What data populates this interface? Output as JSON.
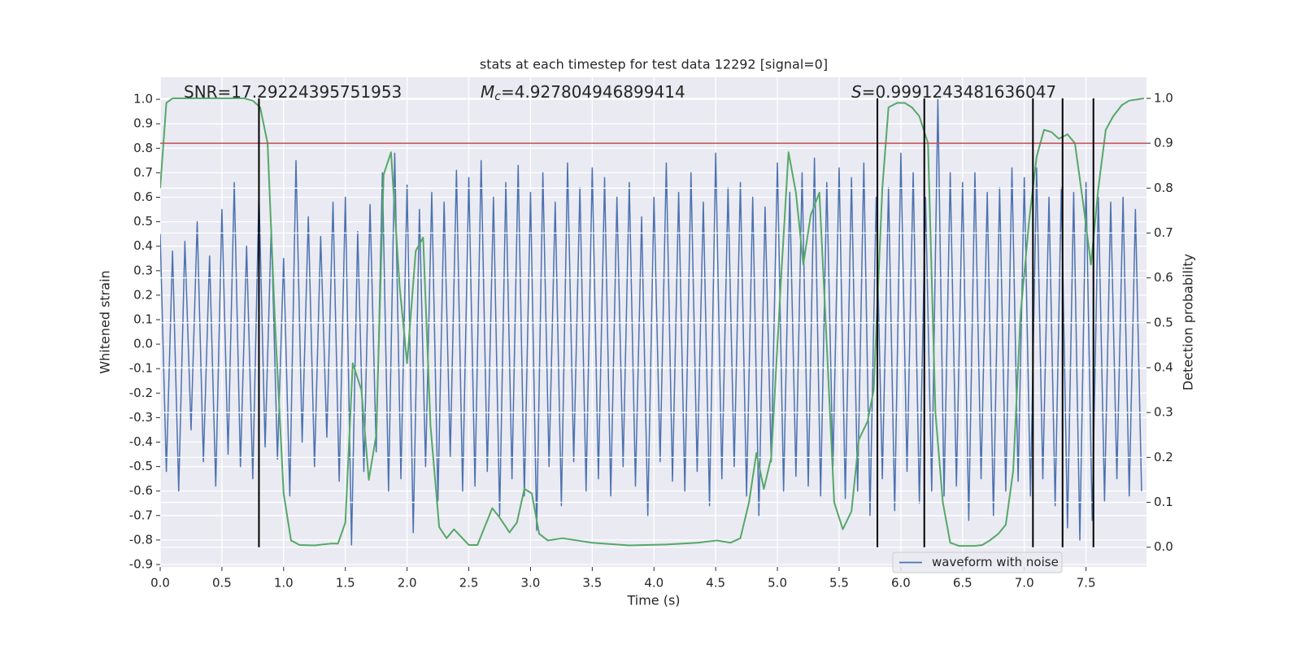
{
  "chart_data": {
    "type": "line",
    "title": "stats at each timestep for test data 12292 [signal=0]",
    "xlabel": "Time (s)",
    "ylabel": "Whitened strain",
    "y2label": "Detection probability",
    "xlim": [
      0,
      7.99
    ],
    "ylim": [
      -0.91,
      1.09
    ],
    "y2lim": [
      -0.044,
      1.047
    ],
    "grid": true,
    "legend": "lower right",
    "xticks": [
      {
        "value": 0,
        "label": "0.0"
      },
      0.5,
      {
        "value": 1,
        "label": "1.0"
      },
      1.5,
      {
        "value": 2,
        "label": "2.0"
      },
      2.5,
      {
        "value": 3,
        "label": "3.0"
      },
      3.5,
      {
        "value": 4,
        "label": "4.0"
      },
      4.5,
      {
        "value": 5,
        "label": "5.0"
      },
      5.5,
      {
        "value": 6,
        "label": "6.0"
      },
      6.5,
      {
        "value": 7,
        "label": "7.0"
      },
      7.5
    ],
    "yticks": [
      -0.9,
      -0.8,
      -0.7,
      -0.6,
      -0.5,
      -0.4,
      -0.3,
      -0.2,
      -0.1,
      {
        "value": 0,
        "label": "0.0"
      },
      0.1,
      0.2,
      0.3,
      0.4,
      0.5,
      0.6,
      0.7,
      0.8,
      0.9,
      {
        "value": 1,
        "label": "1.0"
      }
    ],
    "y2ticks": [
      {
        "value": 0,
        "label": "0.0"
      },
      0.1,
      0.2,
      0.3,
      0.4,
      0.5,
      0.6,
      0.7,
      0.8,
      0.9,
      {
        "value": 1,
        "label": "1.0"
      }
    ],
    "annotations": [
      {
        "text": "SNR=17.29224395751953"
      },
      {
        "symbol": "M",
        "subscript": "c",
        "text": "=4.927804946899414"
      },
      {
        "symbol": "S",
        "text": "=0.9991243481636047"
      }
    ],
    "hlines": [
      {
        "value": 0.9,
        "axis": "y2",
        "color": "#c44e52"
      }
    ],
    "vlines": {
      "x": [
        0.8,
        5.81,
        6.19,
        7.07,
        7.31,
        7.56
      ],
      "y2range": [
        0,
        1
      ],
      "color": "#000000"
    },
    "series": [
      {
        "name": "waveform with noise",
        "color": "#4c72b0",
        "x": [
          0.0,
          0.05,
          0.1,
          0.15,
          0.2,
          0.25,
          0.3,
          0.35,
          0.4,
          0.45,
          0.5,
          0.55,
          0.6,
          0.65,
          0.7,
          0.75,
          0.8,
          0.85,
          0.9,
          0.95,
          1.0,
          1.05,
          1.1,
          1.15,
          1.2,
          1.25,
          1.3,
          1.35,
          1.4,
          1.45,
          1.5,
          1.55,
          1.6,
          1.65,
          1.7,
          1.75,
          1.8,
          1.85,
          1.9,
          1.95,
          2.0,
          2.05,
          2.1,
          2.15,
          2.2,
          2.25,
          2.3,
          2.35,
          2.4,
          2.45,
          2.5,
          2.55,
          2.6,
          2.65,
          2.7,
          2.75,
          2.8,
          2.85,
          2.9,
          2.95,
          3.0,
          3.05,
          3.1,
          3.15,
          3.2,
          3.25,
          3.3,
          3.35,
          3.4,
          3.45,
          3.5,
          3.55,
          3.6,
          3.65,
          3.7,
          3.75,
          3.8,
          3.85,
          3.9,
          3.95,
          4.0,
          4.05,
          4.1,
          4.15,
          4.2,
          4.25,
          4.3,
          4.35,
          4.4,
          4.45,
          4.5,
          4.55,
          4.6,
          4.65,
          4.7,
          4.75,
          4.8,
          4.85,
          4.9,
          4.95,
          5.0,
          5.05,
          5.1,
          5.15,
          5.2,
          5.25,
          5.3,
          5.35,
          5.4,
          5.45,
          5.5,
          5.55,
          5.6,
          5.65,
          5.7,
          5.75,
          5.8,
          5.85,
          5.9,
          5.95,
          6.0,
          6.05,
          6.1,
          6.15,
          6.2,
          6.25,
          6.3,
          6.35,
          6.4,
          6.45,
          6.5,
          6.55,
          6.6,
          6.65,
          6.7,
          6.75,
          6.8,
          6.85,
          6.9,
          6.95,
          7.0,
          7.05,
          7.1,
          7.15,
          7.2,
          7.25,
          7.3,
          7.35,
          7.4,
          7.45,
          7.5,
          7.55,
          7.6,
          7.65,
          7.7,
          7.75,
          7.8,
          7.85,
          7.9,
          7.95
        ],
        "values": [
          0.45,
          -0.52,
          0.38,
          -0.6,
          0.42,
          -0.35,
          0.5,
          -0.48,
          0.36,
          -0.58,
          0.55,
          -0.45,
          0.66,
          -0.5,
          0.4,
          -0.55,
          0.62,
          -0.42,
          0.48,
          -0.47,
          0.35,
          -0.62,
          0.75,
          -0.4,
          0.52,
          -0.5,
          0.44,
          -0.38,
          0.58,
          -0.56,
          0.6,
          -0.82,
          0.46,
          -0.52,
          0.57,
          -0.44,
          0.7,
          -0.6,
          0.78,
          -0.55,
          0.65,
          -0.77,
          0.55,
          -0.5,
          0.62,
          -0.64,
          0.58,
          -0.46,
          0.71,
          -0.6,
          0.68,
          -0.58,
          0.75,
          -0.52,
          0.6,
          -0.7,
          0.66,
          -0.55,
          0.73,
          -0.62,
          0.62,
          -0.76,
          0.7,
          -0.5,
          0.58,
          -0.66,
          0.74,
          -0.48,
          0.64,
          -0.6,
          0.72,
          -0.55,
          0.68,
          -0.62,
          0.6,
          -0.5,
          0.66,
          -0.58,
          0.52,
          -0.7,
          0.6,
          -0.48,
          0.74,
          -0.56,
          0.62,
          -0.6,
          0.7,
          -0.52,
          0.58,
          -0.66,
          0.78,
          -0.55,
          0.64,
          -0.5,
          0.66,
          -0.62,
          0.6,
          -0.7,
          0.56,
          -0.48,
          0.74,
          -0.6,
          0.62,
          -0.54,
          0.7,
          -0.58,
          0.76,
          -0.62,
          0.66,
          -0.5,
          0.72,
          -0.63,
          0.68,
          -0.6,
          0.74,
          -0.7,
          0.6,
          -0.55,
          0.64,
          -0.68,
          0.78,
          -0.52,
          0.7,
          -0.65,
          0.6,
          -0.6,
          1.0,
          -0.62,
          0.7,
          -0.58,
          0.66,
          -0.72,
          0.7,
          -0.55,
          0.62,
          -0.7,
          0.64,
          -0.6,
          0.72,
          -0.56,
          0.68,
          -0.62,
          0.72,
          -0.55,
          0.6,
          -0.66,
          0.64,
          -0.75,
          0.62,
          -0.8,
          0.66,
          -0.72,
          0.6,
          -0.64,
          0.58,
          -0.55,
          0.6,
          -0.62,
          0.55,
          -0.6
        ]
      },
      {
        "color": "#55a868",
        "axis": "y2",
        "x": [
          0.0,
          0.05,
          0.1,
          0.68,
          0.75,
          0.81,
          0.87,
          0.93,
          1.0,
          1.06,
          1.13,
          1.25,
          1.38,
          1.44,
          1.5,
          1.56,
          1.63,
          1.69,
          1.75,
          1.81,
          1.87,
          1.94,
          2.0,
          2.07,
          2.13,
          2.19,
          2.26,
          2.32,
          2.38,
          2.5,
          2.57,
          2.69,
          2.75,
          2.83,
          2.89,
          2.95,
          3.01,
          3.07,
          3.14,
          3.26,
          3.5,
          3.8,
          4.1,
          4.35,
          4.51,
          4.62,
          4.7,
          4.77,
          4.83,
          4.89,
          4.95,
          5.03,
          5.09,
          5.15,
          5.21,
          5.27,
          5.34,
          5.4,
          5.46,
          5.53,
          5.6,
          5.66,
          5.73,
          5.78,
          5.85,
          5.9,
          5.97,
          6.03,
          6.09,
          6.15,
          6.22,
          6.28,
          6.34,
          6.4,
          6.47,
          6.54,
          6.6,
          6.66,
          6.72,
          6.79,
          6.85,
          6.91,
          6.97,
          7.04,
          7.1,
          7.16,
          7.22,
          7.28,
          7.35,
          7.41,
          7.48,
          7.54,
          7.6,
          7.66,
          7.72,
          7.79,
          7.85,
          7.97
        ],
        "values": [
          0.8,
          0.99,
          1.0,
          1.0,
          0.995,
          0.98,
          0.9,
          0.5,
          0.12,
          0.015,
          0.005,
          0.004,
          0.008,
          0.008,
          0.055,
          0.41,
          0.35,
          0.15,
          0.25,
          0.83,
          0.88,
          0.58,
          0.41,
          0.66,
          0.69,
          0.27,
          0.045,
          0.02,
          0.04,
          0.005,
          0.005,
          0.087,
          0.066,
          0.033,
          0.055,
          0.13,
          0.12,
          0.03,
          0.015,
          0.02,
          0.01,
          0.004,
          0.006,
          0.01,
          0.015,
          0.01,
          0.02,
          0.1,
          0.21,
          0.13,
          0.2,
          0.6,
          0.88,
          0.79,
          0.63,
          0.74,
          0.79,
          0.45,
          0.1,
          0.04,
          0.08,
          0.24,
          0.28,
          0.35,
          0.8,
          0.98,
          0.99,
          0.99,
          0.98,
          0.96,
          0.9,
          0.3,
          0.1,
          0.01,
          0.003,
          0.003,
          0.003,
          0.005,
          0.015,
          0.03,
          0.05,
          0.17,
          0.52,
          0.73,
          0.87,
          0.93,
          0.925,
          0.91,
          0.92,
          0.9,
          0.76,
          0.63,
          0.8,
          0.93,
          0.96,
          0.985,
          0.995,
          1.0
        ]
      }
    ]
  }
}
